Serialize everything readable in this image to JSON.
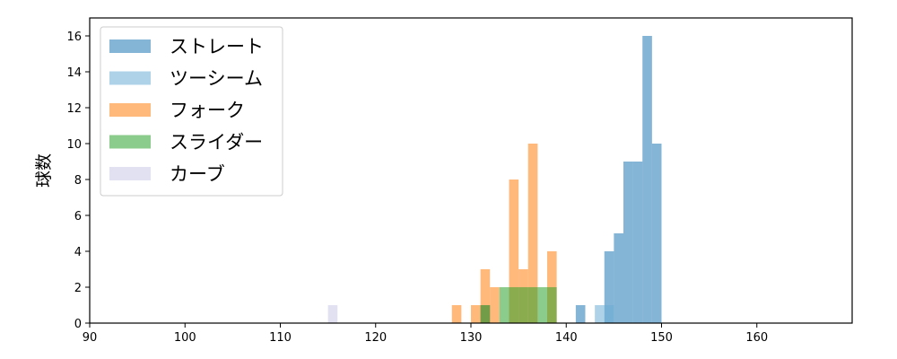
{
  "chart_data": {
    "type": "bar",
    "subtype": "histogram",
    "ylabel": "球数",
    "xlim": [
      90,
      170
    ],
    "ylim": [
      0,
      17
    ],
    "xticks": [
      90,
      100,
      110,
      120,
      130,
      140,
      150,
      160
    ],
    "yticks": [
      0,
      2,
      4,
      6,
      8,
      10,
      12,
      14,
      16
    ],
    "bin_width": 1,
    "grid": false,
    "legend_position": "top-left",
    "series": [
      {
        "name": "ストレート",
        "color": "#1f77b4",
        "bins": [
          [
            131,
            1
          ],
          [
            141,
            1
          ],
          [
            144,
            4
          ],
          [
            145,
            5
          ],
          [
            146,
            9
          ],
          [
            147,
            9
          ],
          [
            148,
            16
          ],
          [
            149,
            10
          ]
        ]
      },
      {
        "name": "ツーシーム",
        "color": "#6baed6",
        "bins": [
          [
            143,
            1
          ],
          [
            144,
            1
          ]
        ]
      },
      {
        "name": "フォーク",
        "color": "#ff7f0e",
        "bins": [
          [
            128,
            1
          ],
          [
            130,
            1
          ],
          [
            131,
            3
          ],
          [
            132,
            2
          ],
          [
            134,
            8
          ],
          [
            135,
            3
          ],
          [
            136,
            10
          ],
          [
            138,
            4
          ]
        ]
      },
      {
        "name": "スライダー",
        "color": "#2ca02c",
        "bins": [
          [
            131,
            1
          ],
          [
            133,
            2
          ],
          [
            134,
            2
          ],
          [
            135,
            2
          ],
          [
            136,
            2
          ],
          [
            137,
            2
          ],
          [
            138,
            2
          ]
        ]
      },
      {
        "name": "カーブ",
        "color": "#c8c8e6",
        "bins": [
          [
            115,
            1
          ]
        ]
      }
    ]
  }
}
